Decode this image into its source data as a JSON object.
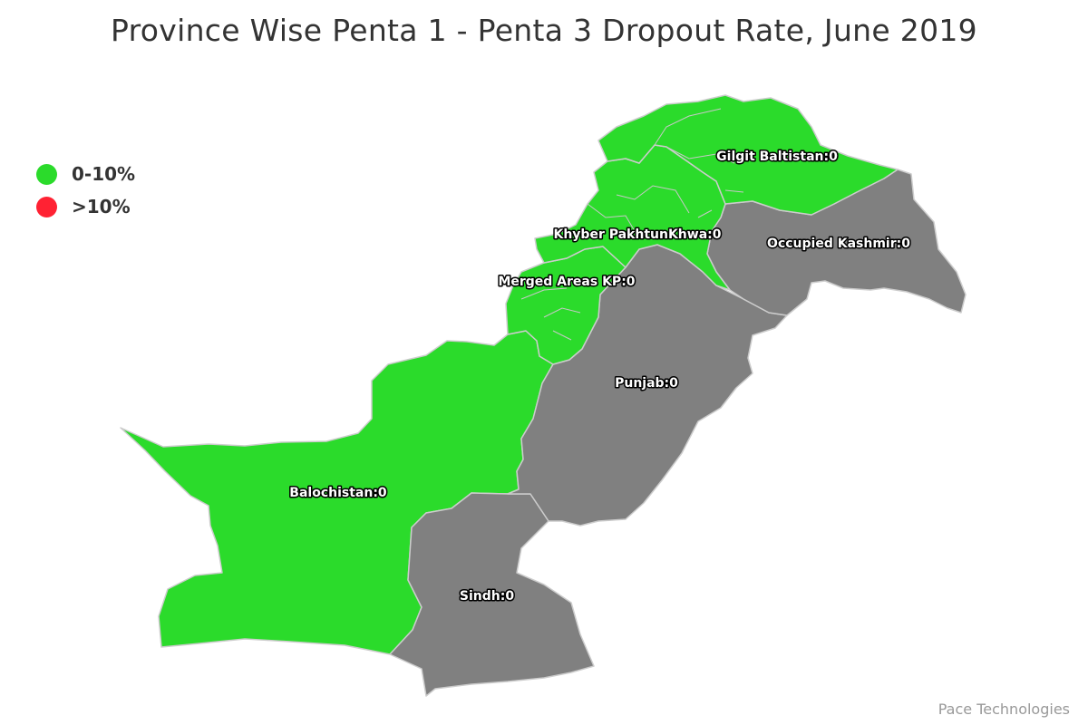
{
  "title": "Province Wise Penta 1 - Penta 3 Dropout Rate, June 2019",
  "legend": [
    {
      "label": "0-10%",
      "color": "#2bdb2b"
    },
    {
      "label": ">10%",
      "color": "#ff2233"
    }
  ],
  "no_data_color": "#808080",
  "regions": [
    {
      "name": "Gilgit Baltistan",
      "value": 0,
      "label": "Gilgit Baltistan:0",
      "color": "#2bdb2b"
    },
    {
      "name": "Khyber PakhtunKhwa",
      "value": 0,
      "label": "Khyber PakhtunKhwa:0",
      "color": "#2bdb2b"
    },
    {
      "name": "Occupied Kashmir",
      "value": 0,
      "label": "Occupied Kashmir:0",
      "color": "#808080"
    },
    {
      "name": "Merged Areas KP",
      "value": 0,
      "label": "Merged Areas KP:0",
      "color": "#2bdb2b"
    },
    {
      "name": "Punjab",
      "value": 0,
      "label": "Punjab:0",
      "color": "#808080"
    },
    {
      "name": "Balochistan",
      "value": 0,
      "label": "Balochistan:0",
      "color": "#2bdb2b"
    },
    {
      "name": "Sindh",
      "value": 0,
      "label": "Sindh:0",
      "color": "#808080"
    }
  ],
  "credits": "Pace Technologies"
}
